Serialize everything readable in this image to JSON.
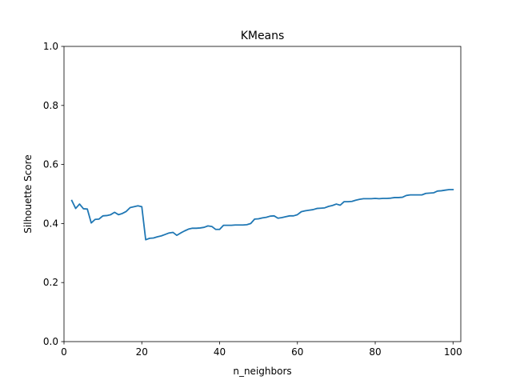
{
  "chart_data": {
    "type": "line",
    "title": "KMeans",
    "xlabel": "n_neighbors",
    "ylabel": "Silhouette Score",
    "xlim": [
      0,
      102
    ],
    "ylim": [
      0.0,
      1.0
    ],
    "grid": false,
    "legend": "none",
    "line_color": "#1f77b4",
    "x_ticks": [
      0,
      20,
      40,
      60,
      80,
      100
    ],
    "x_tick_labels": [
      "0",
      "20",
      "40",
      "60",
      "80",
      "100"
    ],
    "y_ticks": [
      0.0,
      0.2,
      0.4,
      0.6,
      0.8,
      1.0
    ],
    "y_tick_labels": [
      "0.0",
      "0.2",
      "0.4",
      "0.6",
      "0.8",
      "1.0"
    ],
    "series": [
      {
        "x": [
          2,
          3,
          4,
          5,
          6,
          7,
          8,
          9,
          10,
          11,
          12,
          13,
          14,
          15,
          16,
          17,
          18,
          19,
          20,
          21,
          22,
          23,
          24,
          25,
          26,
          27,
          28,
          29,
          30,
          31,
          32,
          33,
          34,
          35,
          36,
          37,
          38,
          39,
          40,
          41,
          42,
          43,
          44,
          45,
          46,
          47,
          48,
          49,
          50,
          51,
          52,
          53,
          54,
          55,
          56,
          57,
          58,
          59,
          60,
          61,
          62,
          63,
          64,
          65,
          66,
          67,
          68,
          69,
          70,
          71,
          72,
          73,
          74,
          75,
          76,
          77,
          78,
          79,
          80,
          81,
          82,
          83,
          84,
          85,
          86,
          87,
          88,
          89,
          90,
          91,
          92,
          93,
          94,
          95,
          96,
          97,
          98,
          99,
          100
        ],
        "values": [
          0.478,
          0.451,
          0.466,
          0.45,
          0.449,
          0.402,
          0.414,
          0.415,
          0.426,
          0.427,
          0.43,
          0.438,
          0.43,
          0.434,
          0.441,
          0.454,
          0.457,
          0.46,
          0.457,
          0.345,
          0.35,
          0.351,
          0.355,
          0.358,
          0.363,
          0.368,
          0.37,
          0.36,
          0.368,
          0.375,
          0.381,
          0.384,
          0.384,
          0.385,
          0.387,
          0.392,
          0.39,
          0.38,
          0.38,
          0.394,
          0.394,
          0.394,
          0.395,
          0.395,
          0.395,
          0.396,
          0.4,
          0.415,
          0.416,
          0.419,
          0.421,
          0.425,
          0.426,
          0.418,
          0.42,
          0.423,
          0.426,
          0.426,
          0.43,
          0.44,
          0.443,
          0.445,
          0.447,
          0.451,
          0.452,
          0.453,
          0.458,
          0.461,
          0.466,
          0.462,
          0.474,
          0.474,
          0.475,
          0.479,
          0.482,
          0.484,
          0.484,
          0.484,
          0.485,
          0.484,
          0.485,
          0.485,
          0.486,
          0.488,
          0.488,
          0.489,
          0.495,
          0.497,
          0.497,
          0.497,
          0.497,
          0.502,
          0.503,
          0.504,
          0.51,
          0.511,
          0.513,
          0.515,
          0.515
        ]
      }
    ]
  }
}
